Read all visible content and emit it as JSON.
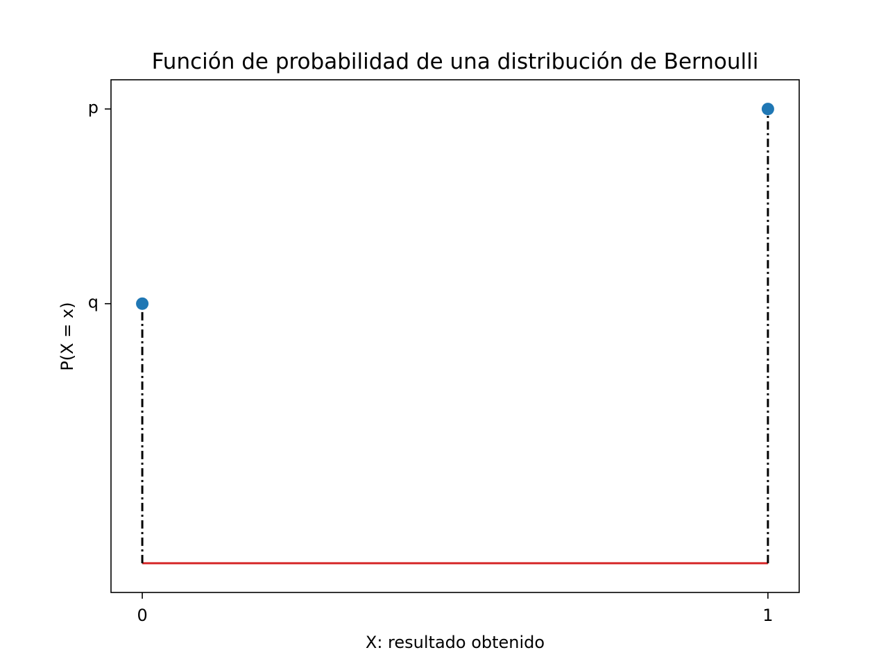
{
  "chart_data": {
    "type": "scatter",
    "title": "Función de probabilidad de una distribución de Bernoulli",
    "xlabel": "X: resultado obtenido",
    "ylabel": "P(X = x)",
    "x_ticks": [
      {
        "value": 0,
        "label": "0"
      },
      {
        "value": 1,
        "label": "1"
      }
    ],
    "y_ticks": [
      {
        "value": 0.4,
        "label": "q"
      },
      {
        "value": 0.7,
        "label": "p"
      }
    ],
    "xlim": [
      -0.05,
      1.05
    ],
    "ylim": [
      -0.045,
      0.745
    ],
    "grid": false,
    "series": [
      {
        "marker": "circle",
        "color": "#1f77b4",
        "points": [
          {
            "x": 0,
            "y": 0.4
          },
          {
            "x": 1,
            "y": 0.7
          }
        ]
      }
    ],
    "stem_lines": {
      "style": "dash-dot",
      "color": "#000000",
      "baseline": 0
    },
    "baseline": {
      "y": 0,
      "x_from": 0,
      "x_to": 1,
      "color": "#d62728"
    }
  }
}
